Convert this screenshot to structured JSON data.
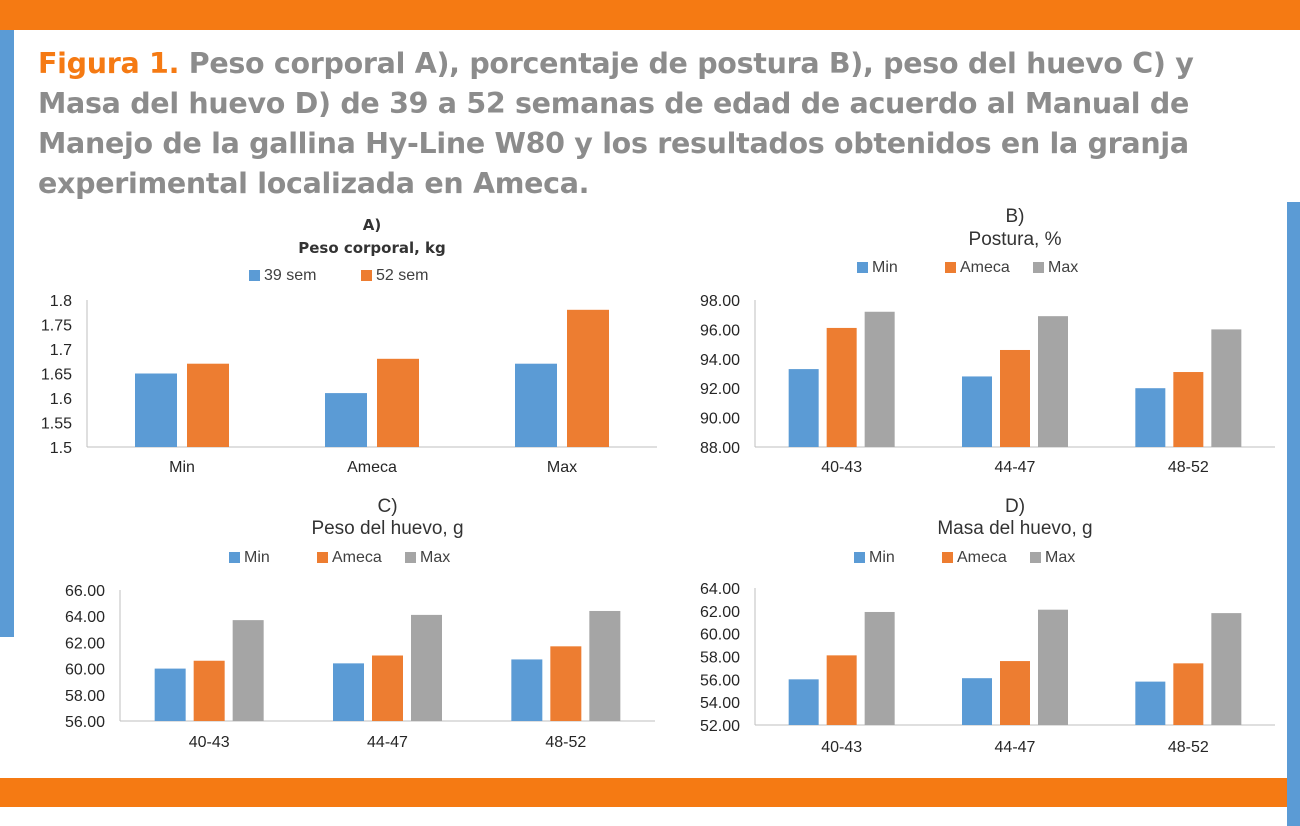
{
  "caption": {
    "label": "Figura 1.",
    "text": " Peso corporal A), porcentaje de postura B), peso del huevo C) y Masa del huevo D) de 39 a 52 semanas de edad de acuerdo al Manual de Manejo de la gallina Hy-Line W80 y los resultados obtenidos en la granja experimental localizada en Ameca."
  },
  "colors": {
    "accent_orange": "#f57a13",
    "accent_blue": "#5b9bd5",
    "caption_gray": "#8c8c8c"
  },
  "chart_data": [
    {
      "type": "bar",
      "title": "A)",
      "subtitle": "Peso corporal, kg",
      "categories": [
        "Min",
        "Ameca",
        "Max"
      ],
      "series": [
        {
          "name": "39 sem",
          "color": "#5b9bd5",
          "values": [
            1.65,
            1.61,
            1.67
          ]
        },
        {
          "name": "52 sem",
          "color": "#ed7d31",
          "values": [
            1.67,
            1.68,
            1.78
          ]
        }
      ],
      "ylim": [
        1.5,
        1.8
      ],
      "yticks": [
        "1.5",
        "1.55",
        "1.6",
        "1.65",
        "1.7",
        "1.75",
        "1.8"
      ],
      "legend": "top",
      "grid": false
    },
    {
      "type": "bar",
      "title": "B)",
      "subtitle": "Postura, %",
      "categories": [
        "40-43",
        "44-47",
        "48-52"
      ],
      "series": [
        {
          "name": "Min",
          "color": "#5b9bd5",
          "values": [
            93.3,
            92.8,
            92.0
          ]
        },
        {
          "name": "Ameca",
          "color": "#ed7d31",
          "values": [
            96.1,
            94.6,
            93.1
          ]
        },
        {
          "name": "Max",
          "color": "#a5a5a5",
          "values": [
            97.2,
            96.9,
            96.0
          ]
        }
      ],
      "ylim": [
        88,
        98
      ],
      "yticks": [
        "88.00",
        "90.00",
        "92.00",
        "94.00",
        "96.00",
        "98.00"
      ],
      "legend": "top",
      "grid": false
    },
    {
      "type": "bar",
      "title": "C)",
      "subtitle": "Peso del huevo, g",
      "categories": [
        "40-43",
        "44-47",
        "48-52"
      ],
      "series": [
        {
          "name": "Min",
          "color": "#5b9bd5",
          "values": [
            60.0,
            60.4,
            60.7
          ]
        },
        {
          "name": "Ameca",
          "color": "#ed7d31",
          "values": [
            60.6,
            61.0,
            61.7
          ]
        },
        {
          "name": "Max",
          "color": "#a5a5a5",
          "values": [
            63.7,
            64.1,
            64.4
          ]
        }
      ],
      "ylim": [
        56,
        66
      ],
      "yticks": [
        "56.00",
        "58.00",
        "60.00",
        "62.00",
        "64.00",
        "66.00"
      ],
      "legend": "top",
      "grid": false
    },
    {
      "type": "bar",
      "title": "D)",
      "subtitle": "Masa del huevo, g",
      "categories": [
        "40-43",
        "44-47",
        "48-52"
      ],
      "series": [
        {
          "name": "Min",
          "color": "#5b9bd5",
          "values": [
            56.0,
            56.1,
            55.8
          ]
        },
        {
          "name": "Ameca",
          "color": "#ed7d31",
          "values": [
            58.1,
            57.6,
            57.4
          ]
        },
        {
          "name": "Max",
          "color": "#a5a5a5",
          "values": [
            61.9,
            62.1,
            61.8
          ]
        }
      ],
      "ylim": [
        52,
        64
      ],
      "yticks": [
        "52.00",
        "54.00",
        "56.00",
        "58.00",
        "60.00",
        "62.00",
        "64.00"
      ],
      "legend": "top",
      "grid": false
    }
  ]
}
